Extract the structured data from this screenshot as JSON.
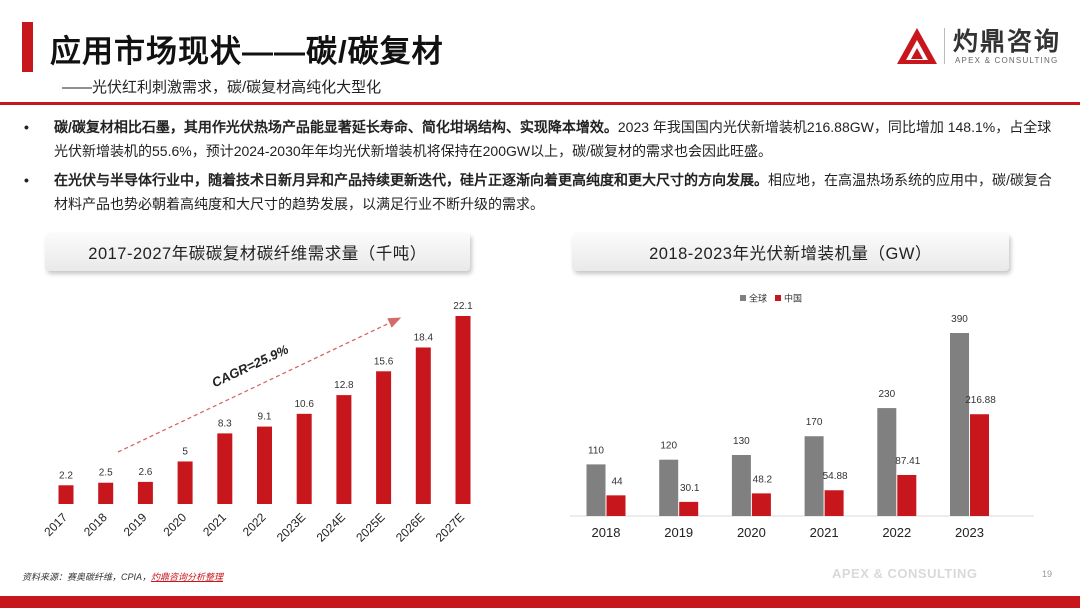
{
  "header": {
    "title": "应用市场现状——碳/碳复材",
    "subtitle": "——光伏红利刺激需求，碳/碳复材高纯化大型化"
  },
  "logo": {
    "cn": "灼鼎咨询",
    "en": "APEX & CONSULTING"
  },
  "colors": {
    "brand_red": "#c8161d",
    "gray": "#808080"
  },
  "bullets": [
    {
      "bold": "碳/碳复材相比石墨，其用作光伏热场产品能显著延长寿命、简化坩埚结构、实现降本增效。",
      "text": "2023 年我国国内光伏新增装机216.88GW，同比增加 148.1%，占全球光伏新增装机的55.6%，预计2024-2030年年均光伏新增装机将保持在200GW以上，碳/碳复材的需求也会因此旺盛。"
    },
    {
      "bold": "在光伏与半导体行业中，随着技术日新月异和产品持续更新迭代，硅片正逐渐向着更高纯度和更大尺寸的方向发展。",
      "text": "相应地，在高温热场系统的应用中，碳/碳复合材料产品也势必朝着高纯度和大尺寸的趋势发展，以满足行业不断升级的需求。"
    }
  ],
  "chart_titles": {
    "left": "2017-2027年碳碳复材碳纤维需求量（千吨）",
    "right": "2018-2023年光伏新增装机量（GW）"
  },
  "chart_data": [
    {
      "type": "bar",
      "title": "2017-2027年碳碳复材碳纤维需求量（千吨）",
      "categories": [
        "2017",
        "2018",
        "2019",
        "2020",
        "2021",
        "2022",
        "2023E",
        "2024E",
        "2025E",
        "2026E",
        "2027E"
      ],
      "values": [
        2.2,
        2.5,
        2.6,
        5,
        8.3,
        9.1,
        10.6,
        12.8,
        15.6,
        18.4,
        22.1
      ],
      "labels": [
        "2.2",
        "2.5",
        "2.6",
        "5",
        "8.3",
        "9.1",
        "10.6",
        "12.8",
        "15.6",
        "18.4",
        "22.1"
      ],
      "annotation": "CAGR=25.9%",
      "ylim": [
        0,
        23
      ]
    },
    {
      "type": "bar",
      "title": "2018-2023年光伏新增装机量（GW）",
      "categories": [
        "2018",
        "2019",
        "2020",
        "2021",
        "2022",
        "2023"
      ],
      "series": [
        {
          "name": "全球",
          "values": [
            110,
            120,
            130,
            170,
            230,
            390
          ],
          "labels": [
            "110",
            "120",
            "130",
            "170",
            "230",
            "390"
          ]
        },
        {
          "name": "中国",
          "values": [
            44,
            30.1,
            48.2,
            54.88,
            87.41,
            216.88
          ],
          "labels": [
            "44",
            "30.1",
            "48.2",
            "54.88",
            "87.41",
            "216.88"
          ]
        }
      ],
      "legend": "top-center",
      "ylim": [
        0,
        420
      ]
    }
  ],
  "footer": {
    "source_prefix": "资料来源：赛奥碳纤维，CPIA，",
    "source_highlight": "灼鼎咨询分析整理",
    "brand": "APEX & CONSULTING",
    "page": "19"
  }
}
